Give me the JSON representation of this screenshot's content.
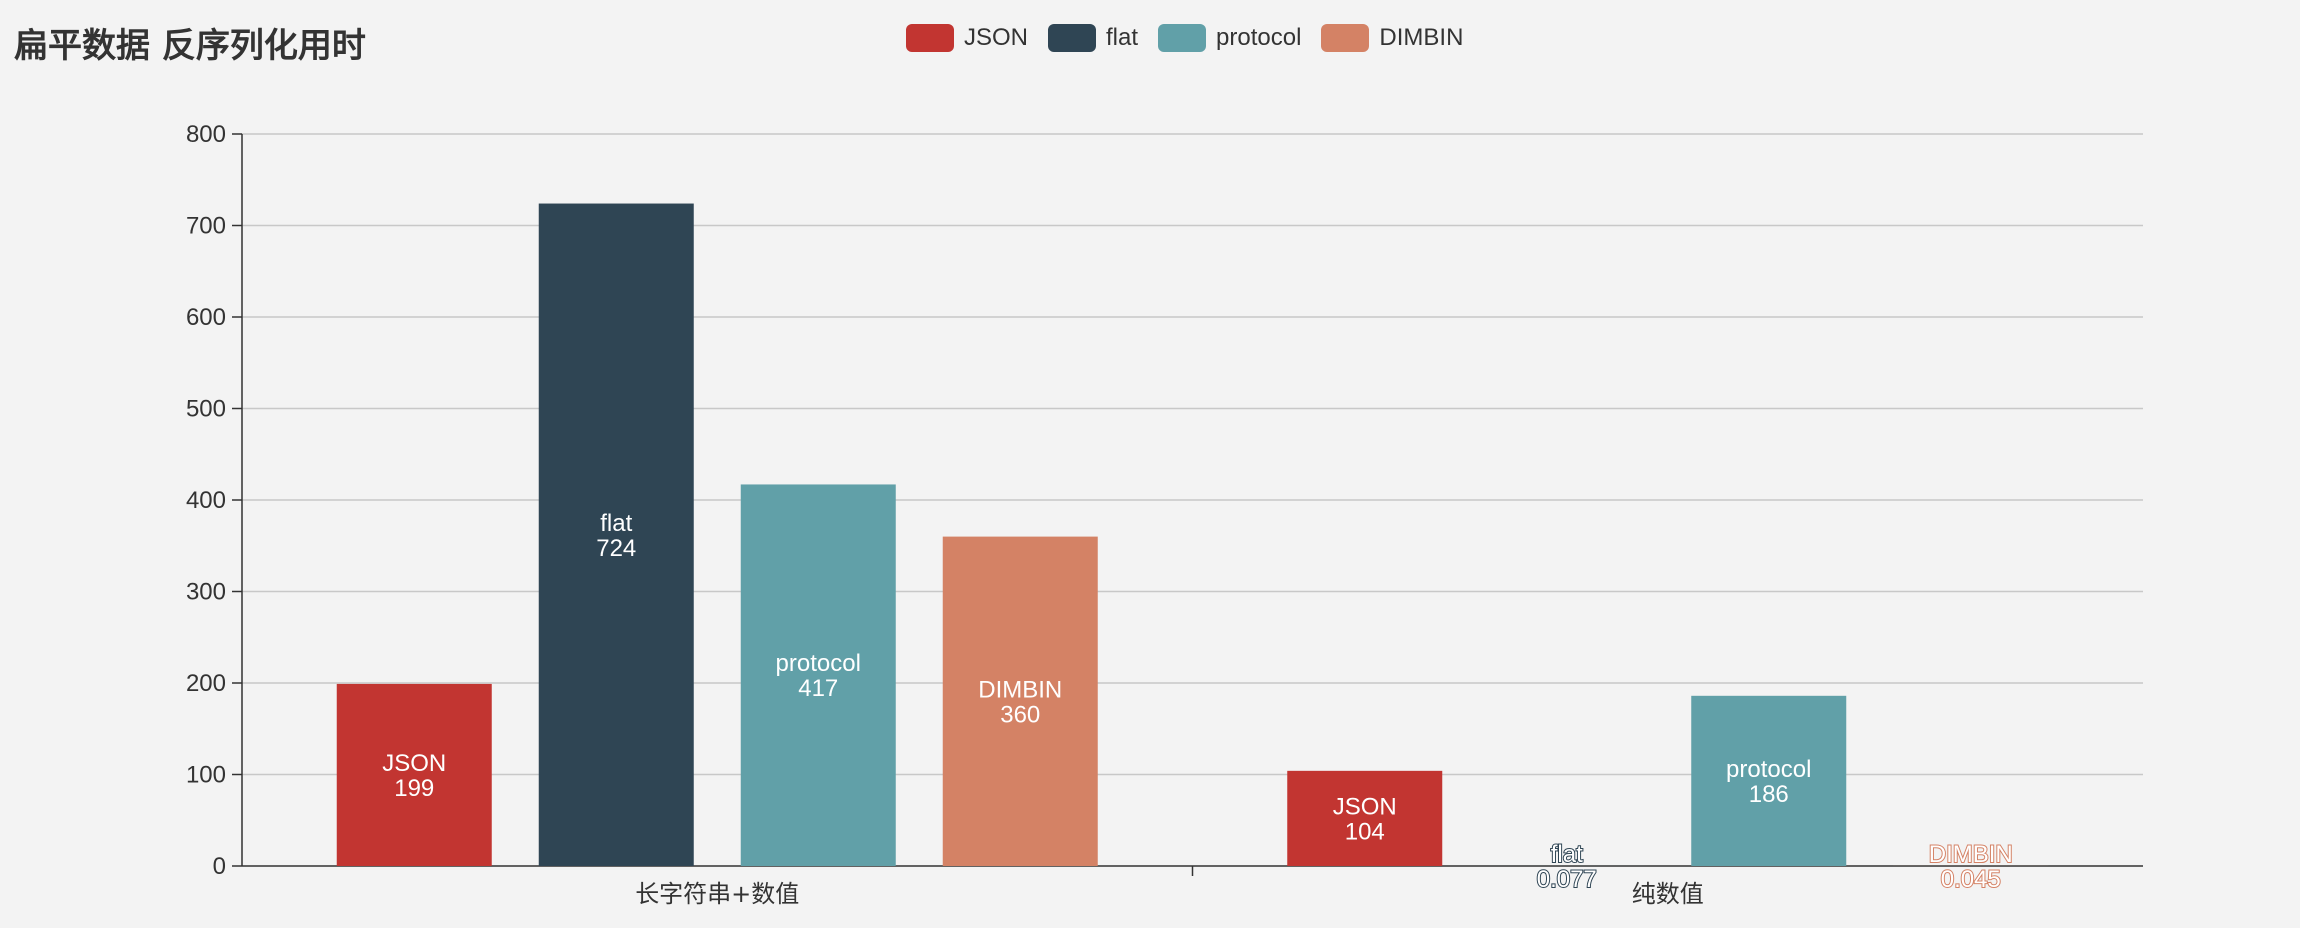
{
  "title": "扁平数据 反序列化用时",
  "legend": [
    {
      "name": "JSON",
      "color": "#c23531"
    },
    {
      "name": "flat",
      "color": "#2f4554"
    },
    {
      "name": "protocol",
      "color": "#61a0a8"
    },
    {
      "name": "DIMBIN",
      "color": "#d48265"
    }
  ],
  "chart_data": {
    "type": "bar",
    "title": "扁平数据 反序列化用时",
    "categories": [
      "长字符串+数值",
      "纯数值"
    ],
    "series": [
      {
        "name": "JSON",
        "color": "#c23531",
        "values": [
          199,
          104
        ]
      },
      {
        "name": "flat",
        "color": "#2f4554",
        "values": [
          724,
          0.077
        ]
      },
      {
        "name": "protocol",
        "color": "#61a0a8",
        "values": [
          417,
          186
        ]
      },
      {
        "name": "DIMBIN",
        "color": "#d48265",
        "values": [
          360,
          0.045
        ]
      }
    ],
    "ylim": [
      0,
      800
    ],
    "yticks": [
      0,
      100,
      200,
      300,
      400,
      500,
      600,
      700,
      800
    ],
    "grid": true,
    "legend_position": "top-center",
    "xlabel": "",
    "ylabel": ""
  }
}
